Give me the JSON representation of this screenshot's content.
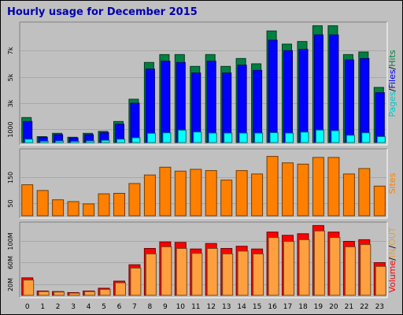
{
  "title": "Hourly usage for December 2015",
  "chart_data": [
    {
      "type": "bar",
      "categories": [
        "0",
        "1",
        "2",
        "3",
        "4",
        "5",
        "6",
        "7",
        "8",
        "9",
        "10",
        "11",
        "12",
        "13",
        "14",
        "15",
        "16",
        "17",
        "18",
        "19",
        "20",
        "21",
        "22",
        "23"
      ],
      "series": [
        {
          "name": "Hits",
          "color": "#008040",
          "values": [
            1900,
            450,
            700,
            400,
            700,
            850,
            1600,
            3300,
            6100,
            6700,
            6700,
            5800,
            6700,
            5800,
            6400,
            6000,
            8500,
            7500,
            7700,
            8900,
            8900,
            6700,
            6900,
            4200
          ]
        },
        {
          "name": "Files",
          "color": "#0000ff",
          "values": [
            1600,
            400,
            600,
            350,
            600,
            750,
            1400,
            3000,
            5600,
            6200,
            6100,
            5300,
            6200,
            5300,
            5900,
            5500,
            7800,
            7000,
            7100,
            8200,
            8200,
            6300,
            6400,
            3800
          ]
        },
        {
          "name": "Pages",
          "color": "#00ffff",
          "values": [
            250,
            100,
            120,
            90,
            120,
            170,
            250,
            360,
            700,
            740,
            940,
            800,
            720,
            720,
            720,
            720,
            750,
            720,
            790,
            950,
            900,
            550,
            740,
            450
          ]
        }
      ],
      "ytick_labels": [
        "1000",
        "3k",
        "5k",
        "7k"
      ],
      "ytick_values": [
        1000,
        3000,
        5000,
        7000
      ],
      "ylim": [
        0,
        9000
      ],
      "ylabel_parts": [
        {
          "text": "Pages",
          "color": "#00c8c8"
        },
        {
          "text": "/",
          "color": "#000000"
        },
        {
          "text": "Files",
          "color": "#0000ff"
        },
        {
          "text": "/",
          "color": "#000000"
        },
        {
          "text": "Hits",
          "color": "#008040"
        }
      ]
    },
    {
      "type": "bar",
      "categories": [
        "0",
        "1",
        "2",
        "3",
        "4",
        "5",
        "6",
        "7",
        "8",
        "9",
        "10",
        "11",
        "12",
        "13",
        "14",
        "15",
        "16",
        "17",
        "18",
        "19",
        "20",
        "21",
        "22",
        "23"
      ],
      "series": [
        {
          "name": "Sites",
          "color": "#ff8000",
          "values": [
            120,
            98,
            62,
            55,
            46,
            85,
            87,
            125,
            158,
            188,
            173,
            180,
            175,
            138,
            175,
            162,
            230,
            205,
            200,
            226,
            226,
            162,
            183,
            115
          ]
        }
      ],
      "ytick_labels": [
        "50",
        "150"
      ],
      "ytick_values": [
        50,
        150
      ],
      "ylim": [
        0,
        250
      ],
      "ylabel_parts": [
        {
          "text": "Sites",
          "color": "#ff8000"
        }
      ]
    },
    {
      "type": "bar",
      "categories": [
        "0",
        "1",
        "2",
        "3",
        "4",
        "5",
        "6",
        "7",
        "8",
        "9",
        "10",
        "11",
        "12",
        "13",
        "14",
        "15",
        "16",
        "17",
        "18",
        "19",
        "20",
        "21",
        "22",
        "23"
      ],
      "series": [
        {
          "name": "Volume",
          "color": "#ff0000",
          "values": [
            32,
            8,
            7,
            5,
            8,
            13,
            26,
            56,
            86,
            98,
            97,
            85,
            95,
            86,
            90,
            85,
            116,
            110,
            113,
            128,
            116,
            99,
            102,
            60
          ]
        },
        {
          "name": "IN",
          "color": "#ffa040",
          "values": [
            28,
            7,
            6,
            4,
            7,
            11,
            23,
            50,
            76,
            89,
            86,
            77,
            86,
            76,
            81,
            76,
            106,
            99,
            102,
            118,
            106,
            89,
            93,
            53
          ]
        },
        {
          "name": "OUT",
          "color": "#ffa040",
          "values": [
            0,
            0,
            0,
            0,
            0,
            0,
            0,
            0,
            0,
            0,
            0,
            0,
            0,
            0,
            0,
            0,
            0,
            0,
            0,
            0,
            0,
            0,
            0,
            0
          ]
        }
      ],
      "ytick_labels": [
        "20M",
        "60M",
        "100M"
      ],
      "ytick_values": [
        20,
        60,
        100
      ],
      "ylim": [
        0,
        130
      ],
      "ylabel_parts": [
        {
          "text": "Volume",
          "color": "#ff0000"
        },
        {
          "text": "/",
          "color": "#000000"
        },
        {
          "text": "IN",
          "color": "#e0a040"
        },
        {
          "text": "/",
          "color": "#000000"
        },
        {
          "text": "OUT",
          "color": "#e0a040"
        }
      ]
    }
  ]
}
